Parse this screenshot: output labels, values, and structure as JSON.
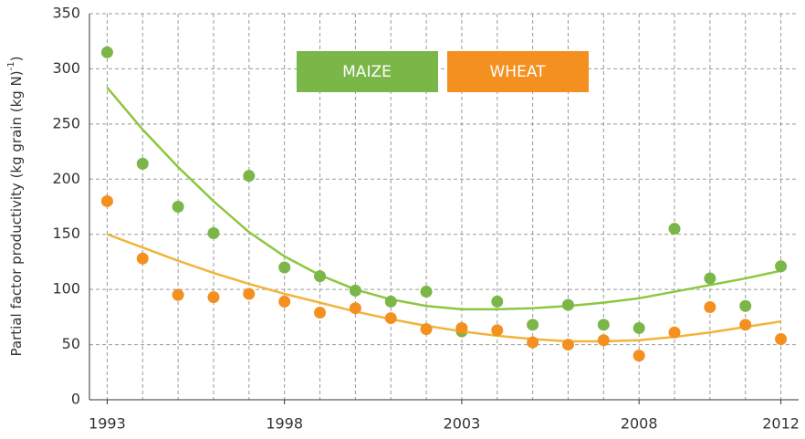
{
  "chart_data": {
    "type": "scatter",
    "ylabel": {
      "text": "Partial factor productivity (kg grain (kg N)",
      "sup": "-1",
      "end": ")"
    },
    "x": [
      1993,
      1994,
      1995,
      1996,
      1997,
      1998,
      1999,
      2000,
      2001,
      2002,
      2003,
      2004,
      2005,
      2006,
      2007,
      2008,
      2009,
      2010,
      2011,
      2012
    ],
    "series": [
      {
        "name": "MAIZE",
        "color": "#7ab648",
        "trend_color": "#8dc63f",
        "values": [
          315,
          214,
          175,
          151,
          203,
          120,
          112,
          99,
          89,
          98,
          62,
          89,
          68,
          86,
          68,
          65,
          155,
          110,
          85,
          121
        ],
        "trend": [
          283,
          245,
          211,
          180,
          152,
          130,
          113,
          100,
          91,
          85,
          82,
          82,
          83,
          85,
          88,
          92,
          98,
          104,
          110,
          117
        ]
      },
      {
        "name": "WHEAT",
        "color": "#f39020",
        "trend_color": "#f0b43c",
        "values": [
          180,
          128,
          95,
          93,
          96,
          89,
          79,
          83,
          74,
          64,
          65,
          63,
          52,
          50,
          54,
          40,
          61,
          84,
          68,
          55
        ],
        "trend": [
          150,
          138,
          126,
          115,
          105,
          96,
          88,
          80,
          73,
          67,
          62,
          58,
          55,
          53,
          53,
          54,
          57,
          61,
          66,
          71
        ]
      }
    ],
    "xlim": [
      1992.5,
      2012.5
    ],
    "xticks": [
      1993,
      1998,
      2003,
      2008,
      2012
    ],
    "ylim": [
      0,
      350
    ],
    "yticks": [
      0,
      50,
      100,
      150,
      200,
      250,
      300,
      350
    ],
    "grid": true
  }
}
